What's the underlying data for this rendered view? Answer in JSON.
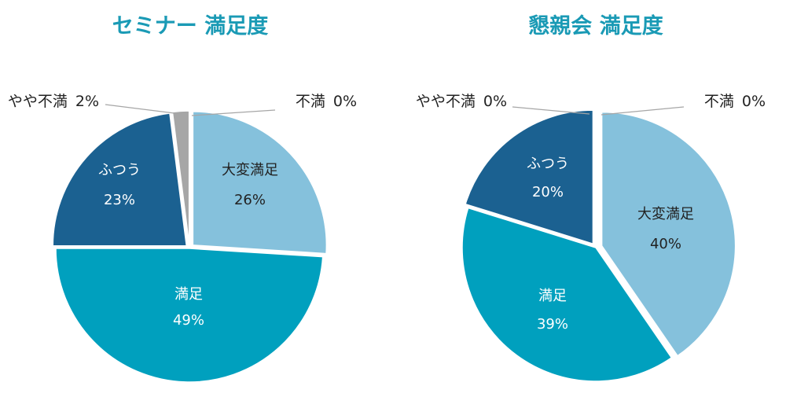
{
  "chart_data": [
    {
      "type": "pie",
      "title": "セミナー 満足度",
      "slices": [
        {
          "label": "大変満足",
          "value": 26,
          "value_label": "26%",
          "color": "#85c1dc"
        },
        {
          "label": "満足",
          "value": 49,
          "value_label": "49%",
          "color": "#00a0be"
        },
        {
          "label": "ふつう",
          "value": 23,
          "value_label": "23%",
          "color": "#1b6191"
        },
        {
          "label": "やや不満",
          "value": 2,
          "value_label": "2%",
          "color": "#a6a6a6"
        },
        {
          "label": "不満",
          "value": 0,
          "value_label": "0%",
          "color": "#7f7f7f"
        }
      ]
    },
    {
      "type": "pie",
      "title": "懇親会 満足度",
      "slices": [
        {
          "label": "大変満足",
          "value": 40,
          "value_label": "40%",
          "color": "#85c1dc"
        },
        {
          "label": "満足",
          "value": 39,
          "value_label": "39%",
          "color": "#00a0be"
        },
        {
          "label": "ふつう",
          "value": 20,
          "value_label": "20%",
          "color": "#1b6191"
        },
        {
          "label": "やや不満",
          "value": 0,
          "value_label": "0%",
          "color": "#a6a6a6"
        },
        {
          "label": "不満",
          "value": 0,
          "value_label": "0%",
          "color": "#7f7f7f"
        }
      ]
    }
  ],
  "colors": {
    "title": "#1a9ab5",
    "dark_text": "#222222",
    "light_text": "#ffffff"
  }
}
